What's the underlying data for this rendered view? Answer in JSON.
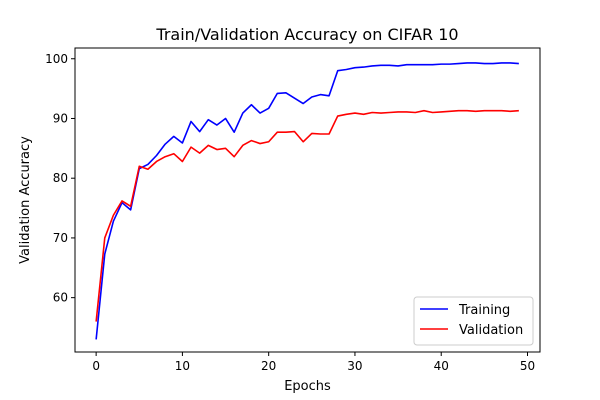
{
  "chart_data": {
    "type": "line",
    "title": "Train/Validation Accuracy on CIFAR 10",
    "xlabel": "Epochs",
    "ylabel": "Validation Accuracy",
    "xlim": [
      -2.45,
      51.45
    ],
    "ylim": [
      50.9,
      101.8
    ],
    "xticks": [
      0,
      10,
      20,
      30,
      40,
      50
    ],
    "yticks": [
      60,
      70,
      80,
      90,
      100
    ],
    "grid": false,
    "legend_position": "bottom-right",
    "x": [
      0,
      1,
      2,
      3,
      4,
      5,
      6,
      7,
      8,
      9,
      10,
      11,
      12,
      13,
      14,
      15,
      16,
      17,
      18,
      19,
      20,
      21,
      22,
      23,
      24,
      25,
      26,
      27,
      28,
      29,
      30,
      31,
      32,
      33,
      34,
      35,
      36,
      37,
      38,
      39,
      40,
      41,
      42,
      43,
      44,
      45,
      46,
      47,
      48,
      49
    ],
    "series": [
      {
        "name": "Training",
        "color": "#0000ff",
        "values": [
          53.0,
          67.3,
          72.8,
          75.9,
          74.7,
          81.6,
          82.3,
          83.8,
          85.7,
          87.0,
          85.9,
          89.5,
          87.8,
          89.8,
          88.9,
          90.0,
          87.7,
          90.9,
          92.3,
          90.9,
          91.7,
          94.2,
          94.3,
          93.4,
          92.5,
          93.6,
          94.0,
          93.8,
          98.0,
          98.2,
          98.5,
          98.6,
          98.8,
          98.9,
          98.9,
          98.8,
          99.0,
          99.0,
          99.0,
          99.0,
          99.1,
          99.1,
          99.2,
          99.3,
          99.3,
          99.2,
          99.2,
          99.3,
          99.3,
          99.2
        ]
      },
      {
        "name": "Validation",
        "color": "#ff0000",
        "values": [
          56.0,
          70.0,
          73.8,
          76.2,
          75.3,
          82.0,
          81.5,
          82.8,
          83.6,
          84.1,
          82.8,
          85.2,
          84.2,
          85.5,
          84.8,
          85.0,
          83.6,
          85.5,
          86.3,
          85.8,
          86.1,
          87.7,
          87.7,
          87.8,
          86.1,
          87.5,
          87.4,
          87.4,
          90.4,
          90.7,
          90.9,
          90.7,
          91.0,
          90.9,
          91.0,
          91.1,
          91.1,
          91.0,
          91.3,
          91.0,
          91.1,
          91.2,
          91.3,
          91.3,
          91.2,
          91.3,
          91.3,
          91.3,
          91.2,
          91.3
        ]
      }
    ]
  }
}
